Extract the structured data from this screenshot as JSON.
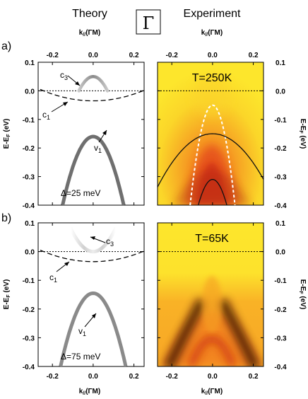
{
  "header": {
    "theory": "Theory",
    "gamma": "Γ",
    "experiment": "Experiment"
  },
  "axes": {
    "k_label": "k//(ΓM)",
    "e_label": "E-EF(eV)"
  },
  "panels": {
    "a": {
      "label": "a)",
      "theory": {
        "delta": "Δ=25 meV",
        "c3": "c3",
        "c1": "c1",
        "v1": "v1"
      },
      "experiment": {
        "temperature": "T=250K"
      }
    },
    "b": {
      "label": "b)",
      "theory": {
        "delta": "Δ=75 meV",
        "c3": "c3",
        "c1": "c1",
        "v1": "v1"
      },
      "experiment": {
        "temperature": "T=65K"
      }
    }
  },
  "chart_data": {
    "type": "line",
    "x_range": [
      -0.27,
      0.25
    ],
    "y_range": [
      -0.4,
      0.1
    ],
    "x_ticks": [
      -0.2,
      0.0,
      0.2
    ],
    "y_ticks": [
      0.1,
      0.0,
      -0.1,
      -0.2,
      -0.3,
      -0.4
    ],
    "x_tick_labels": [
      "-0.2",
      "0.0",
      "0.2"
    ],
    "y_tick_labels": [
      "0.1",
      "0.0",
      "-0.1",
      "-0.2",
      "-0.3",
      "-0.4"
    ],
    "curves": {
      "a_theory": {
        "c3": {
          "k": [
            -0.07,
            -0.04,
            0.0,
            0.04,
            0.07
          ],
          "E": [
            0.0,
            0.035,
            0.05,
            0.035,
            0.0
          ]
        },
        "c1": {
          "k": [
            -0.26,
            -0.13,
            0.0,
            0.13,
            0.26
          ],
          "E": [
            0.005,
            -0.025,
            -0.035,
            -0.025,
            0.005
          ]
        },
        "v1": {
          "k": [
            -0.15,
            -0.075,
            0.0,
            0.075,
            0.15
          ],
          "E": [
            -0.4,
            -0.22,
            -0.16,
            -0.22,
            -0.4
          ]
        },
        "fermi": 0.0
      },
      "a_experiment": {
        "outer": {
          "k": [
            -0.27,
            -0.135,
            0.0,
            0.135,
            0.25
          ],
          "E": [
            -0.33,
            -0.18,
            -0.15,
            -0.18,
            -0.31
          ]
        },
        "inner": {
          "k": [
            -0.07,
            -0.04,
            0.0,
            0.04,
            0.07
          ],
          "E": [
            -0.4,
            -0.34,
            -0.31,
            -0.34,
            -0.4
          ]
        },
        "dashed": {
          "k": [
            -0.11,
            -0.05,
            0.0,
            0.05,
            0.11
          ],
          "E": [
            -0.4,
            -0.11,
            -0.05,
            -0.11,
            -0.4
          ]
        },
        "fermi": 0.0
      },
      "b_theory": {
        "c3": {
          "k": [
            -0.11,
            -0.05,
            0.0,
            0.05,
            0.11
          ],
          "E": [
            0.08,
            0.03,
            0.0,
            0.03,
            0.08
          ]
        },
        "c1": {
          "k": [
            -0.26,
            -0.13,
            0.0,
            0.13,
            0.26
          ],
          "E": [
            0.005,
            -0.025,
            -0.035,
            -0.025,
            0.005
          ]
        },
        "v1": {
          "k": [
            -0.16,
            -0.08,
            0.0,
            0.08,
            0.16
          ],
          "E": [
            -0.4,
            -0.21,
            -0.145,
            -0.21,
            -0.4
          ]
        },
        "fermi": 0.0
      },
      "b_experiment": {
        "fermi": 0.0
      }
    }
  }
}
